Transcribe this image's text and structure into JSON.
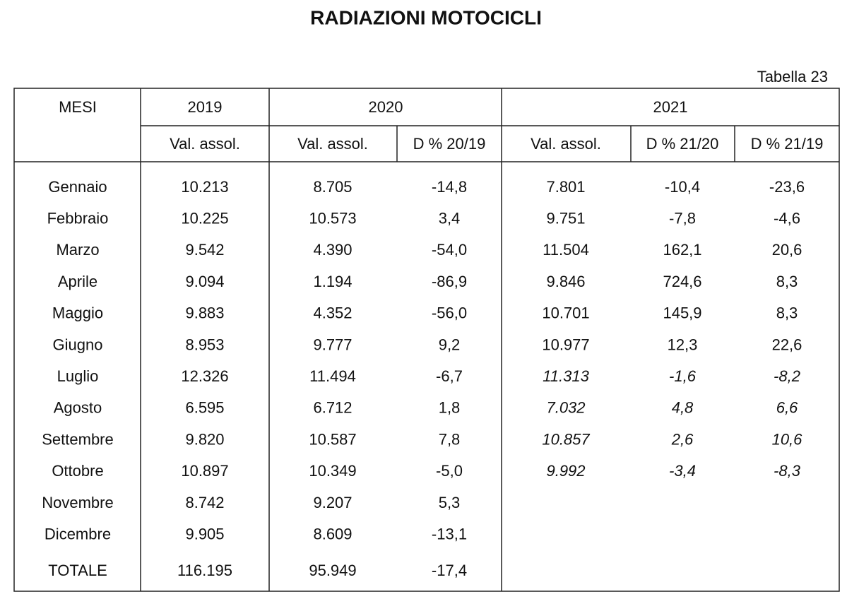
{
  "title": "RADIAZIONI MOTOCICLI",
  "table_label": "Tabella 23",
  "header": {
    "first": "MESI",
    "years": [
      "2019",
      "2020",
      "2021"
    ],
    "subheaders": [
      "Val. assol.",
      "Val. assol.",
      "D % 20/19",
      "Val. assol.",
      "D % 21/20",
      "D % 21/19"
    ]
  },
  "rows": [
    [
      "Gennaio",
      "10.213",
      "8.705",
      "-14,8",
      "7.801",
      "-10,4",
      "-23,6"
    ],
    [
      "Febbraio",
      "10.225",
      "10.573",
      "3,4",
      "9.751",
      "-7,8",
      "-4,6"
    ],
    [
      "Marzo",
      "9.542",
      "4.390",
      "-54,0",
      "11.504",
      "162,1",
      "20,6"
    ],
    [
      "Aprile",
      "9.094",
      "1.194",
      "-86,9",
      "9.846",
      "724,6",
      "8,3"
    ],
    [
      "Maggio",
      "9.883",
      "4.352",
      "-56,0",
      "10.701",
      "145,9",
      "8,3"
    ],
    [
      "Giugno",
      "8.953",
      "9.777",
      "9,2",
      "10.977",
      "12,3",
      "22,6"
    ],
    [
      "Luglio",
      "12.326",
      "11.494",
      "-6,7",
      "11.313",
      "-1,6",
      "-8,2"
    ],
    [
      "Agosto",
      "6.595",
      "6.712",
      "1,8",
      "7.032",
      "4,8",
      "6,6"
    ],
    [
      "Settembre",
      "9.820",
      "10.587",
      "7,8",
      "10.857",
      "2,6",
      "10,6"
    ],
    [
      "Ottobre",
      "10.897",
      "10.349",
      "-5,0",
      "9.992",
      "-3,4",
      "-8,3"
    ],
    [
      "Novembre",
      "8.742",
      "9.207",
      "5,3"
    ],
    [
      "Dicembre",
      "9.905",
      "8.609",
      "-13,1"
    ],
    [
      "TOTALE",
      "116.195",
      "95.949",
      "-17,4"
    ]
  ]
}
